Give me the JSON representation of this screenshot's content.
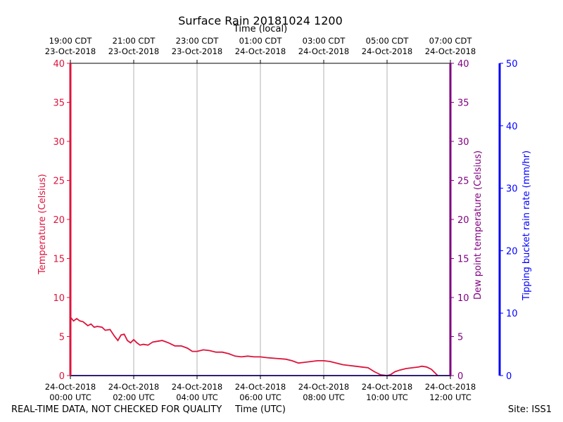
{
  "colors": {
    "temperature": "#dc143c",
    "dewpoint": "#800080",
    "rain": "#0000ff",
    "grid": "#b0b0b0"
  },
  "labels": {
    "title": "Surface Rain 20181024 1200",
    "top_axis_label": "Time (local)",
    "x_axis_label": "Time (UTC)",
    "footer_left": "REAL-TIME DATA, NOT CHECKED FOR QUALITY",
    "footer_right": "Site: ISS1",
    "y_left_label": "Temperature (Celsius)",
    "y_right_label": "Dew point temperature (Celsius)",
    "y_far_right_label": "Tipping bucket rain rate (mm/hr)"
  },
  "chart_data": {
    "type": "line",
    "title": "Surface Rain 20181024 1200",
    "xlabel": "Time (UTC)",
    "x_top_label": "Time (local)",
    "ylabel_left": "Temperature (Celsius)",
    "ylabel_right": "Dew point temperature (Celsius)",
    "ylabel_far_right": "Tipping bucket rain rate (mm/hr)",
    "xlim": [
      0,
      12
    ],
    "ylim_left": [
      0,
      40
    ],
    "ylim_right": [
      0,
      40
    ],
    "ylim_far_right": [
      0,
      50
    ],
    "y_ticks_left": [
      "0",
      "5",
      "10",
      "15",
      "20",
      "25",
      "30",
      "35",
      "40"
    ],
    "y_ticks_right": [
      "0",
      "5",
      "10",
      "15",
      "20",
      "25",
      "30",
      "35",
      "40"
    ],
    "y_ticks_far_right": [
      "0",
      "10",
      "20",
      "30",
      "40",
      "50"
    ],
    "x_ticks_bottom": [
      {
        "x": 0,
        "line1": "24-Oct-2018",
        "line2": "00:00 UTC"
      },
      {
        "x": 2,
        "line1": "24-Oct-2018",
        "line2": "02:00 UTC"
      },
      {
        "x": 4,
        "line1": "24-Oct-2018",
        "line2": "04:00 UTC"
      },
      {
        "x": 6,
        "line1": "24-Oct-2018",
        "line2": "06:00 UTC"
      },
      {
        "x": 8,
        "line1": "24-Oct-2018",
        "line2": "08:00 UTC"
      },
      {
        "x": 10,
        "line1": "24-Oct-2018",
        "line2": "10:00 UTC"
      },
      {
        "x": 12,
        "line1": "24-Oct-2018",
        "line2": "12:00 UTC"
      }
    ],
    "x_ticks_top": [
      {
        "x": 0,
        "line1": "19:00 CDT",
        "line2": "23-Oct-2018"
      },
      {
        "x": 2,
        "line1": "21:00 CDT",
        "line2": "23-Oct-2018"
      },
      {
        "x": 4,
        "line1": "23:00 CDT",
        "line2": "23-Oct-2018"
      },
      {
        "x": 6,
        "line1": "01:00 CDT",
        "line2": "24-Oct-2018"
      },
      {
        "x": 8,
        "line1": "03:00 CDT",
        "line2": "24-Oct-2018"
      },
      {
        "x": 10,
        "line1": "05:00 CDT",
        "line2": "24-Oct-2018"
      },
      {
        "x": 12,
        "line1": "07:00 CDT",
        "line2": "24-Oct-2018"
      }
    ],
    "grid": true,
    "series": [
      {
        "name": "Temperature (Celsius)",
        "axis": "left",
        "x": [
          0,
          0.1,
          0.2,
          0.3,
          0.4,
          0.55,
          0.65,
          0.75,
          0.85,
          1.0,
          1.1,
          1.25,
          1.4,
          1.5,
          1.6,
          1.7,
          1.8,
          1.9,
          2.0,
          2.1,
          2.2,
          2.3,
          2.45,
          2.6,
          2.75,
          2.9,
          3.1,
          3.3,
          3.5,
          3.7,
          3.85,
          4.0,
          4.2,
          4.4,
          4.6,
          4.8,
          5.0,
          5.2,
          5.4,
          5.6,
          5.8,
          6.0,
          6.2,
          6.5,
          6.8,
          7.0,
          7.2,
          7.4,
          7.6,
          7.8,
          8.0,
          8.2,
          8.4,
          8.6,
          8.8,
          9.0,
          9.2,
          9.4,
          9.6,
          9.8,
          10.0,
          10.1,
          10.25,
          10.4,
          10.6,
          10.8,
          11.0,
          11.1,
          11.25,
          11.4,
          11.6
        ],
        "values": [
          7.5,
          7.0,
          7.3,
          7.0,
          6.9,
          6.4,
          6.6,
          6.2,
          6.3,
          6.2,
          5.8,
          5.9,
          5.0,
          4.5,
          5.2,
          5.3,
          4.5,
          4.2,
          4.6,
          4.2,
          3.9,
          4.0,
          3.9,
          4.3,
          4.4,
          4.5,
          4.2,
          3.8,
          3.8,
          3.5,
          3.1,
          3.1,
          3.3,
          3.2,
          3.0,
          3.0,
          2.8,
          2.5,
          2.4,
          2.5,
          2.4,
          2.4,
          2.3,
          2.2,
          2.1,
          1.9,
          1.6,
          1.7,
          1.8,
          1.9,
          1.9,
          1.8,
          1.6,
          1.4,
          1.3,
          1.2,
          1.1,
          1.0,
          0.5,
          0.1,
          0.0,
          0.1,
          0.5,
          0.7,
          0.9,
          1.0,
          1.1,
          1.2,
          1.1,
          0.8,
          0.0
        ]
      },
      {
        "name": "Dew point temperature (Celsius)",
        "axis": "right",
        "x": [
          0,
          12
        ],
        "values": [
          0,
          0
        ]
      },
      {
        "name": "Tipping bucket rain rate (mm/hr)",
        "axis": "far_right",
        "x": [
          0,
          12
        ],
        "values": [
          0,
          0
        ]
      }
    ]
  }
}
